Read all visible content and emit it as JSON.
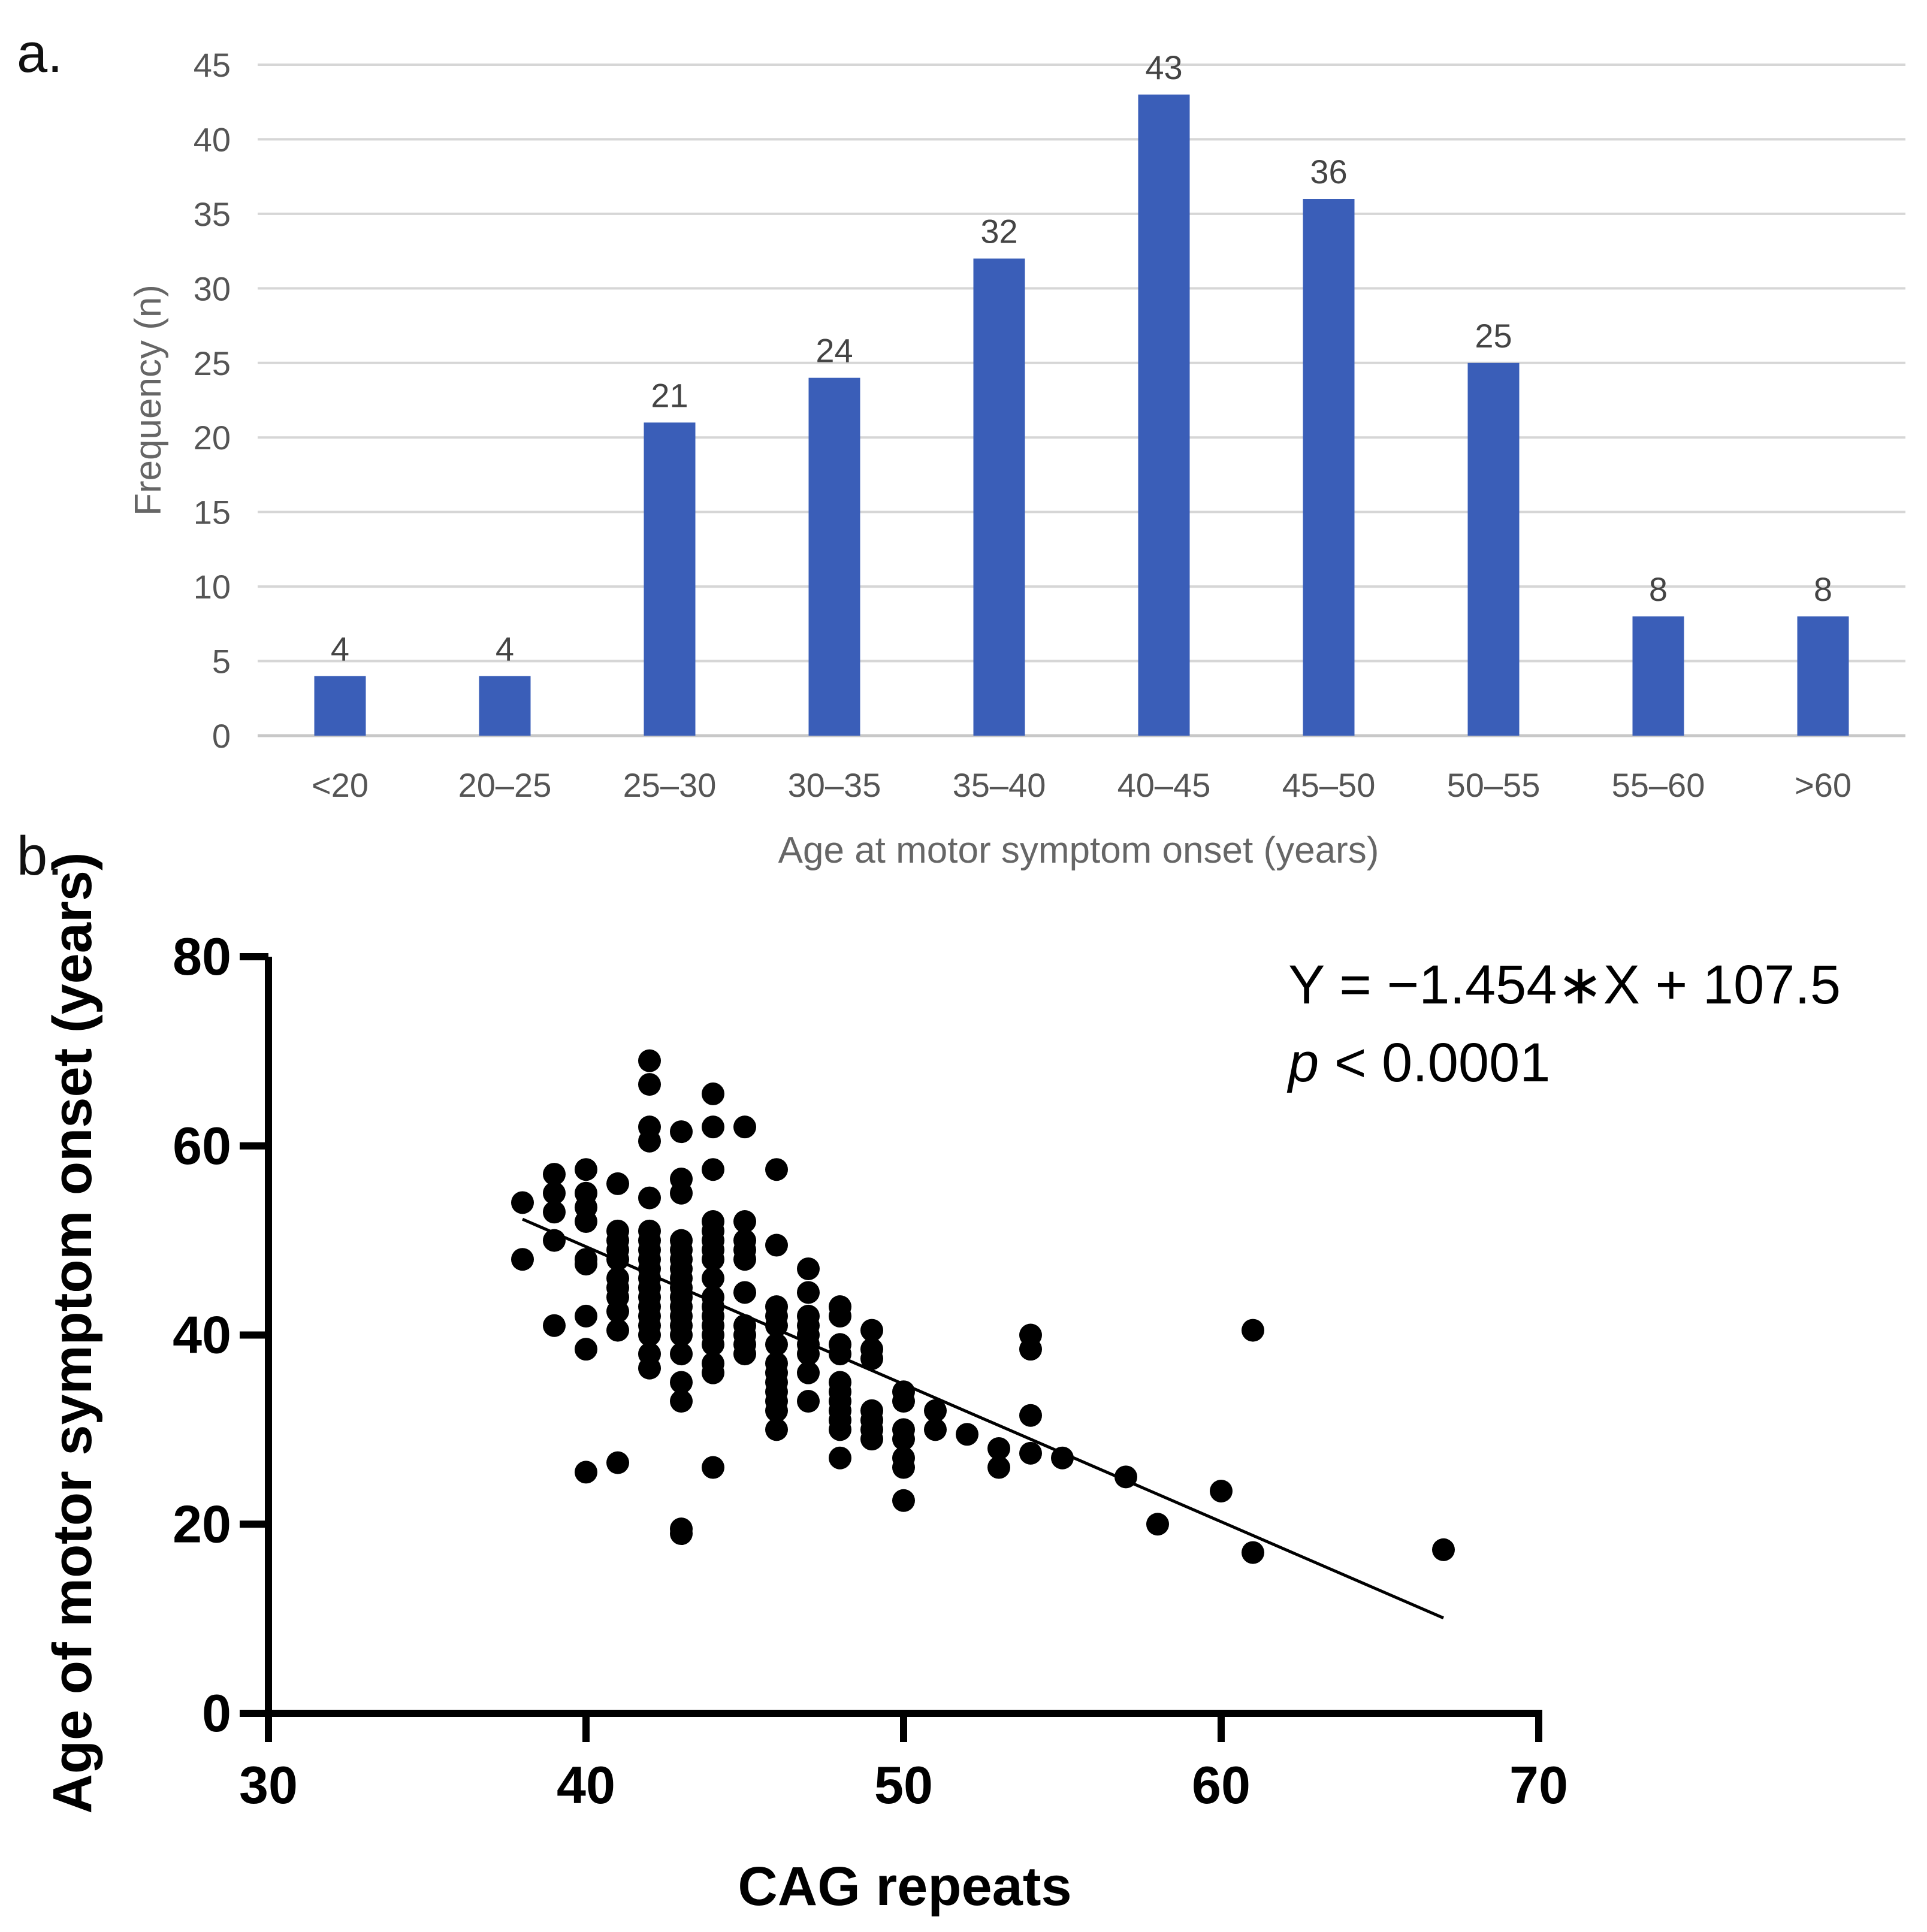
{
  "chart_data": [
    {
      "type": "bar",
      "panel_label": "a.",
      "categories": [
        "<20",
        "20–25",
        "25–30",
        "30–35",
        "35–40",
        "40–45",
        "45–50",
        "50–55",
        "55–60",
        ">60"
      ],
      "values": [
        4,
        4,
        21,
        24,
        32,
        43,
        36,
        25,
        8,
        8
      ],
      "xlabel": "Age at motor symptom onset (years)",
      "ylabel": "Frequency (n)",
      "ylim": [
        0,
        45
      ],
      "yticks": [
        0,
        5,
        10,
        15,
        20,
        25,
        30,
        35,
        40,
        45
      ],
      "grid": true,
      "bar_color": "#3a5eb8"
    },
    {
      "type": "scatter",
      "panel_label": "b.",
      "xlabel": "CAG repeats",
      "ylabel": "Age of motor symptom onset (years)",
      "xlim": [
        30,
        70
      ],
      "ylim": [
        0,
        80
      ],
      "xticks": [
        30,
        40,
        50,
        60,
        70
      ],
      "yticks": [
        0,
        20,
        40,
        60,
        80
      ],
      "annotation_equation": "Y = −1.454∗X + 107.5",
      "annotation_p_symbol": "p",
      "annotation_p_value": " < 0.0001",
      "regression": {
        "slope": -1.454,
        "intercept": 107.5,
        "x_range": [
          38,
          67
        ]
      },
      "points": [
        [
          38,
          54
        ],
        [
          38,
          48
        ],
        [
          39,
          57
        ],
        [
          39,
          55
        ],
        [
          39,
          53
        ],
        [
          39,
          50
        ],
        [
          39,
          41
        ],
        [
          40,
          57.5
        ],
        [
          40,
          55
        ],
        [
          40,
          53.5
        ],
        [
          40,
          52
        ],
        [
          40,
          48
        ],
        [
          40,
          47.5
        ],
        [
          40,
          42
        ],
        [
          40,
          38.5
        ],
        [
          40,
          25.5
        ],
        [
          41,
          56
        ],
        [
          41,
          51
        ],
        [
          41,
          50
        ],
        [
          41,
          49
        ],
        [
          41,
          48
        ],
        [
          41,
          46
        ],
        [
          41,
          45
        ],
        [
          41,
          44
        ],
        [
          41,
          42.5
        ],
        [
          41,
          40.5
        ],
        [
          41,
          26.5
        ],
        [
          42,
          69
        ],
        [
          42,
          66.5
        ],
        [
          42,
          62
        ],
        [
          42,
          60.5
        ],
        [
          42,
          54.5
        ],
        [
          42,
          51
        ],
        [
          42,
          50
        ],
        [
          42,
          49
        ],
        [
          42,
          48
        ],
        [
          42,
          47
        ],
        [
          42,
          46
        ],
        [
          42,
          45
        ],
        [
          42,
          44
        ],
        [
          42,
          43
        ],
        [
          42,
          42
        ],
        [
          42,
          41
        ],
        [
          42,
          40
        ],
        [
          42,
          38
        ],
        [
          42,
          36.5
        ],
        [
          43,
          61.5
        ],
        [
          43,
          56.5
        ],
        [
          43,
          55
        ],
        [
          43,
          50
        ],
        [
          43,
          49
        ],
        [
          43,
          48
        ],
        [
          43,
          47
        ],
        [
          43,
          46
        ],
        [
          43,
          45
        ],
        [
          43,
          44
        ],
        [
          43,
          43
        ],
        [
          43,
          42
        ],
        [
          43,
          41
        ],
        [
          43,
          40
        ],
        [
          43,
          38
        ],
        [
          43,
          35
        ],
        [
          43,
          33
        ],
        [
          43,
          19.5
        ],
        [
          43,
          19
        ],
        [
          44,
          65.5
        ],
        [
          44,
          62
        ],
        [
          44,
          57.5
        ],
        [
          44,
          52
        ],
        [
          44,
          51
        ],
        [
          44,
          50
        ],
        [
          44,
          49
        ],
        [
          44,
          48
        ],
        [
          44,
          46
        ],
        [
          44,
          44
        ],
        [
          44,
          43
        ],
        [
          44,
          42
        ],
        [
          44,
          41
        ],
        [
          44,
          40
        ],
        [
          44,
          39
        ],
        [
          44,
          37
        ],
        [
          44,
          36
        ],
        [
          44,
          26
        ],
        [
          45,
          62
        ],
        [
          45,
          52
        ],
        [
          45,
          50
        ],
        [
          45,
          49
        ],
        [
          45,
          48
        ],
        [
          45,
          44.5
        ],
        [
          45,
          41
        ],
        [
          45,
          40
        ],
        [
          45,
          39
        ],
        [
          45,
          38
        ],
        [
          46,
          57.5
        ],
        [
          46,
          49.5
        ],
        [
          46,
          43
        ],
        [
          46,
          42
        ],
        [
          46,
          41
        ],
        [
          46,
          39
        ],
        [
          46,
          37
        ],
        [
          46,
          36
        ],
        [
          46,
          35
        ],
        [
          46,
          34
        ],
        [
          46,
          33
        ],
        [
          46,
          32
        ],
        [
          46,
          30
        ],
        [
          47,
          47
        ],
        [
          47,
          44.5
        ],
        [
          47,
          42
        ],
        [
          47,
          41
        ],
        [
          47,
          40
        ],
        [
          47,
          39
        ],
        [
          47,
          38
        ],
        [
          47,
          36
        ],
        [
          47,
          33
        ],
        [
          48,
          43
        ],
        [
          48,
          42
        ],
        [
          48,
          39
        ],
        [
          48,
          38
        ],
        [
          48,
          35
        ],
        [
          48,
          34
        ],
        [
          48,
          33
        ],
        [
          48,
          32
        ],
        [
          48,
          31
        ],
        [
          48,
          30
        ],
        [
          48,
          27
        ],
        [
          49,
          40.5
        ],
        [
          49,
          38.5
        ],
        [
          49,
          37.5
        ],
        [
          49,
          32
        ],
        [
          49,
          31
        ],
        [
          49,
          30
        ],
        [
          49,
          29
        ],
        [
          50,
          34
        ],
        [
          50,
          33
        ],
        [
          50,
          30
        ],
        [
          50,
          29
        ],
        [
          50,
          27
        ],
        [
          50,
          26
        ],
        [
          50,
          22.5
        ],
        [
          51,
          32
        ],
        [
          51,
          30
        ],
        [
          52,
          29.5
        ],
        [
          53,
          28
        ],
        [
          53,
          26
        ],
        [
          54,
          40
        ],
        [
          54,
          38.5
        ],
        [
          54,
          31.5
        ],
        [
          54,
          27.5
        ],
        [
          55,
          27
        ],
        [
          57,
          25
        ],
        [
          58,
          20
        ],
        [
          60,
          23.5
        ],
        [
          61,
          40.5
        ],
        [
          61,
          17
        ],
        [
          67,
          17.3
        ]
      ]
    }
  ]
}
